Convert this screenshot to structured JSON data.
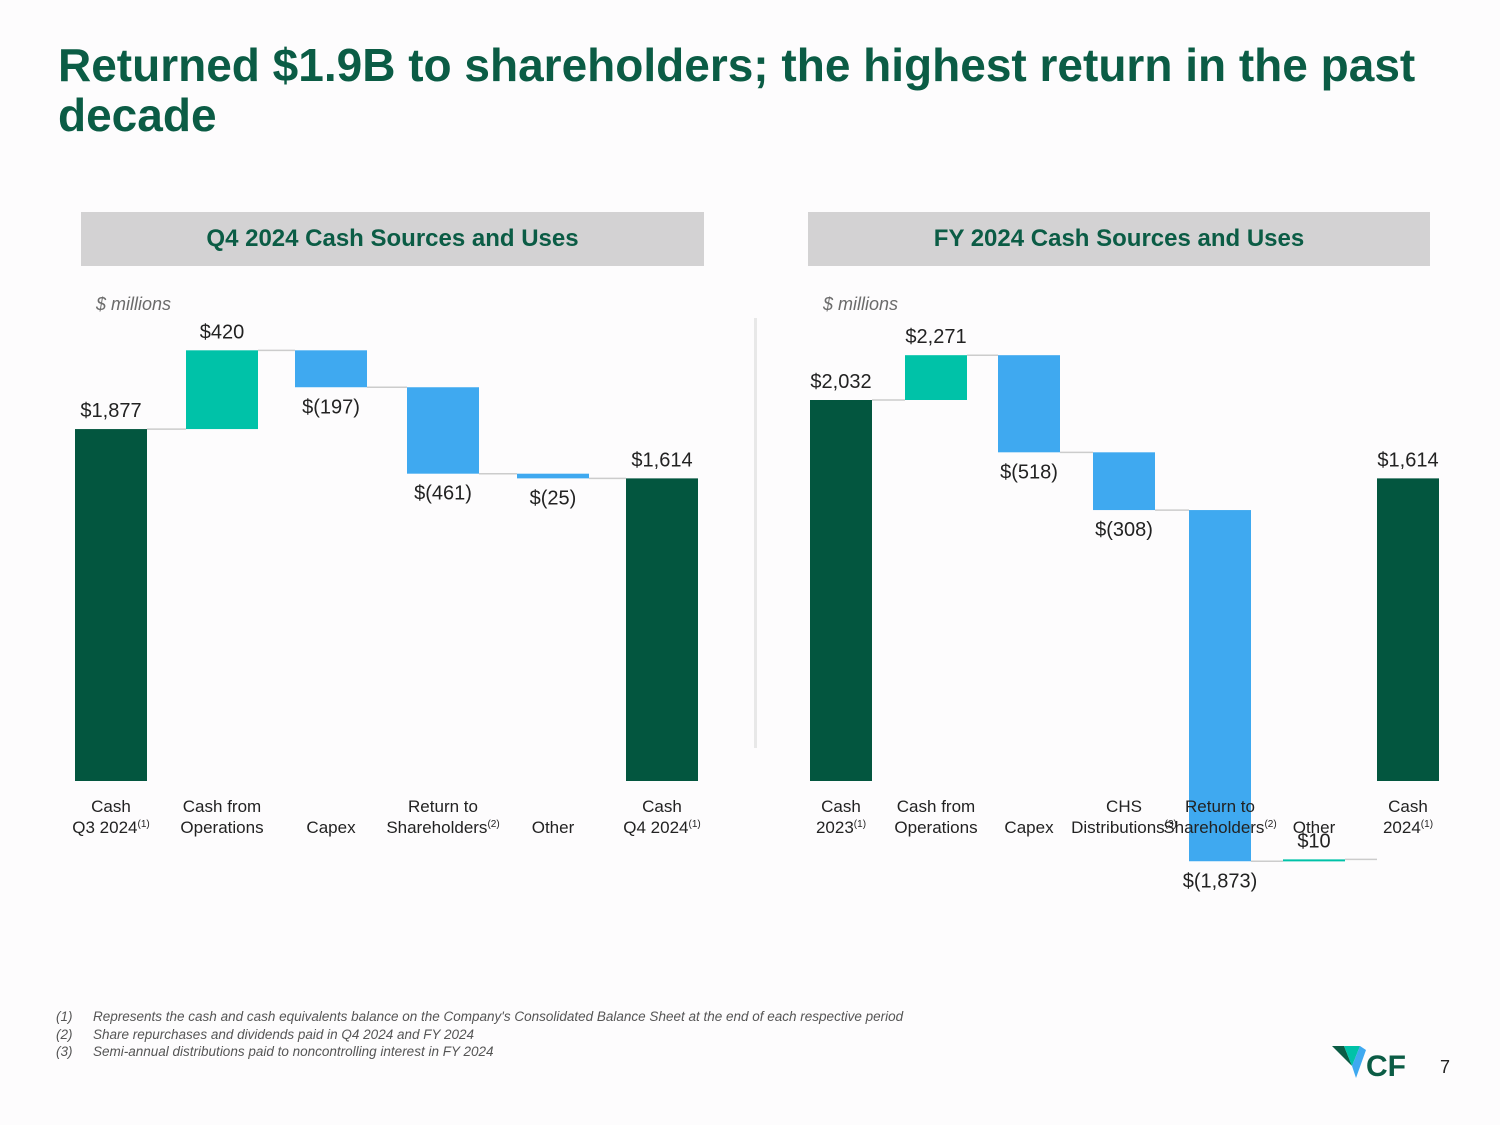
{
  "title": "Returned $1.9B to shareholders; the highest return in the past decade",
  "colors": {
    "total": "#03563f",
    "increase": "#00c2a8",
    "decrease": "#3fa9f0",
    "connector": "#cccccc"
  },
  "panels": [
    {
      "header": "Q4 2024 Cash Sources and Uses",
      "unit": "$ millions"
    },
    {
      "header": "FY 2024 Cash Sources and Uses",
      "unit": "$ millions"
    }
  ],
  "chart_data": [
    {
      "type": "waterfall",
      "title": "Q4 2024 Cash Sources and Uses",
      "ylabel": "$ millions",
      "ylim": [
        0,
        2300
      ],
      "categories": [
        "Cash Q3 2024(1)",
        "Cash from Operations",
        "Capex",
        "Return to Shareholders(2)",
        "Other",
        "Cash Q4 2024(1)"
      ],
      "category_lines": [
        [
          [
            "Cash",
            ""
          ],
          [
            "Q3 2024",
            "(1)"
          ]
        ],
        [
          [
            "Cash from",
            ""
          ],
          [
            "Operations",
            ""
          ]
        ],
        [
          [
            "Capex",
            ""
          ]
        ],
        [
          [
            "Return to",
            ""
          ],
          [
            "Shareholders",
            "(2)"
          ]
        ],
        [
          [
            "Other",
            ""
          ]
        ],
        [
          [
            "Cash",
            ""
          ],
          [
            "Q4 2024",
            "(1)"
          ]
        ]
      ],
      "values": [
        1877,
        420,
        -197,
        -461,
        -25,
        1614
      ],
      "kinds": [
        "total",
        "increase",
        "decrease",
        "decrease",
        "decrease",
        "total"
      ],
      "labels": [
        "$1,877",
        "$420",
        "$(197)",
        "$(461)",
        "$(25)",
        "$1,614"
      ]
    },
    {
      "type": "waterfall",
      "title": "FY 2024 Cash Sources and Uses",
      "ylabel": "$ millions",
      "ylim": [
        0,
        2300
      ],
      "categories": [
        "Cash 2023(1)",
        "Cash from Operations",
        "Capex",
        "CHS Distributions(3)",
        "Return to Shareholders(2)",
        "Other",
        "Cash 2024(1)"
      ],
      "category_lines": [
        [
          [
            "Cash",
            ""
          ],
          [
            "2023",
            "(1)"
          ]
        ],
        [
          [
            "Cash from",
            ""
          ],
          [
            "Operations",
            ""
          ]
        ],
        [
          [
            "Capex",
            ""
          ]
        ],
        [
          [
            "CHS",
            ""
          ],
          [
            "Distributions",
            "(3)"
          ]
        ],
        [
          [
            "Return to",
            ""
          ],
          [
            "Shareholders",
            "(2)"
          ]
        ],
        [
          [
            "Other",
            ""
          ]
        ],
        [
          [
            "Cash",
            ""
          ],
          [
            "2024",
            "(1)"
          ]
        ]
      ],
      "values": [
        2032,
        2271,
        -518,
        -308,
        -1873,
        10,
        1614
      ],
      "kinds": [
        "total",
        "increase",
        "decrease",
        "decrease",
        "decrease",
        "increase",
        "total"
      ],
      "labels": [
        "$2,032",
        "$2,271",
        "$(518)",
        "$(308)",
        "$(1,873)",
        "$10",
        "$1,614"
      ]
    }
  ],
  "footnotes": [
    {
      "num": "(1)",
      "text": "Represents the cash and cash equivalents balance on the Company's Consolidated Balance Sheet at the end of each respective period"
    },
    {
      "num": "(2)",
      "text": "Share repurchases and dividends paid in Q4 2024 and FY 2024"
    },
    {
      "num": "(3)",
      "text": "Semi-annual distributions paid to noncontrolling interest in FY 2024"
    }
  ],
  "logo_text": "CF",
  "page_number": "7"
}
